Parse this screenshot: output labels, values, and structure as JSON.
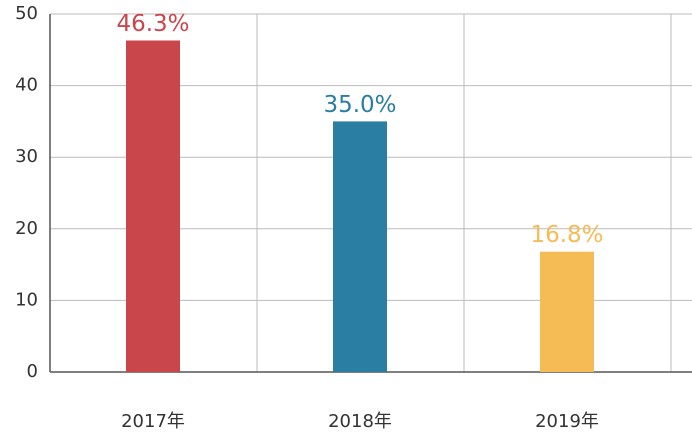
{
  "chart_data": {
    "type": "bar",
    "categories": [
      "2017年",
      "2018年",
      "2019年"
    ],
    "values": [
      46.3,
      35.0,
      16.8
    ],
    "value_labels": [
      "46.3%",
      "35.0%",
      "16.8%"
    ],
    "colors": [
      "#c9474b",
      "#2a7ea3",
      "#f5bb55"
    ],
    "ylim": [
      0,
      50
    ],
    "yticks": [
      0,
      10,
      20,
      30,
      40,
      50
    ],
    "grid": true
  }
}
